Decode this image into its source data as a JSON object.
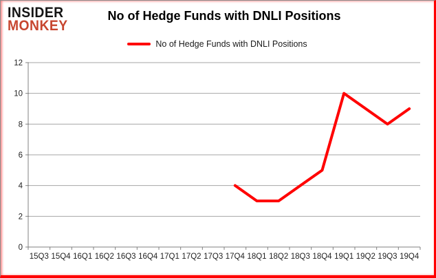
{
  "logo": {
    "line1": "INSIDER",
    "line2": "MONKEY"
  },
  "header": {
    "title": "No of Hedge Funds with DNLI Positions"
  },
  "legend": {
    "label": "No of Hedge Funds with DNLI Positions"
  },
  "colors": {
    "series": "#ff0000",
    "gridline": "#a6a6a6",
    "axis": "#808080",
    "tick_label": "#1f1f1f",
    "logo_monkey": "#c7462f"
  },
  "chart_data": {
    "type": "line",
    "title": "No of Hedge Funds with DNLI Positions",
    "categories": [
      "15Q3",
      "15Q4",
      "16Q1",
      "16Q2",
      "16Q3",
      "16Q4",
      "17Q1",
      "17Q2",
      "17Q3",
      "17Q4",
      "18Q1",
      "18Q2",
      "18Q3",
      "18Q4",
      "19Q1",
      "19Q2",
      "19Q3",
      "19Q4"
    ],
    "series": [
      {
        "name": "No of Hedge Funds with DNLI Positions",
        "color": "#ff0000",
        "values": [
          null,
          null,
          null,
          null,
          null,
          null,
          null,
          null,
          null,
          4,
          3,
          3,
          4,
          5,
          10,
          9,
          8,
          9
        ]
      }
    ],
    "ylim": [
      0,
      12
    ],
    "yticks": [
      0,
      2,
      4,
      6,
      8,
      10,
      12
    ],
    "grid": true,
    "legend_position": "top"
  }
}
